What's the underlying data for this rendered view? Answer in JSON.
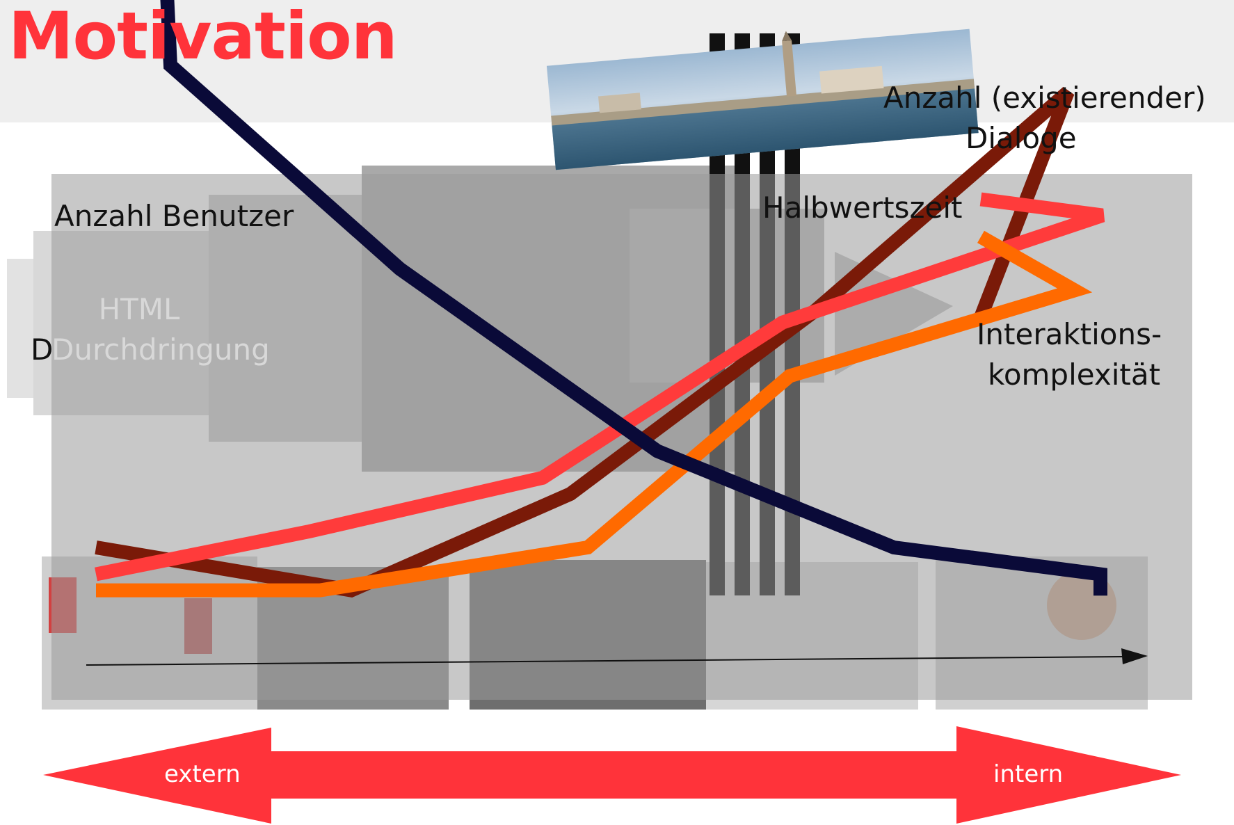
{
  "title": "Motivation",
  "labels": {
    "anzahl_benutzer": "Anzahl Benutzer",
    "dialoge_line1": "Anzahl (existierender)",
    "dialoge_line2": "Dialoge",
    "halbwertszeit": "Halbwertszeit",
    "interaktion_line1": "Interaktions-",
    "interaktion_line2": "komplexität"
  },
  "faded_labels": {
    "html_line1": "HTML",
    "html_line2": "Durchdringung",
    "d_prefix": "D"
  },
  "arrow": {
    "left_label": "extern",
    "right_label": "intern",
    "color": "#ff333a"
  },
  "colors": {
    "title": "#ff333a",
    "anzahl_benutzer": "#0a0a38",
    "anzahl_dialoge": "#7a1a08",
    "halbwertszeit": "#ff3b3b",
    "interaktionskomplexitaet": "#ff6a00"
  },
  "chart_data": {
    "type": "line",
    "x": [
      1,
      2,
      3,
      4,
      5,
      6,
      7,
      8
    ],
    "series": [
      {
        "name": "Anzahl Benutzer",
        "values": [
          null,
          100,
          62,
          28,
          10,
          5,
          1,
          null
        ]
      },
      {
        "name": "Anzahl (existierender) Dialoge",
        "values": [
          10,
          2,
          20,
          54,
          95,
          53,
          null,
          null
        ]
      },
      {
        "name": "Halbwertszeit",
        "values": [
          5,
          13,
          23,
          52,
          72,
          75,
          null,
          null
        ]
      },
      {
        "name": "Interaktions-komplexität",
        "values": [
          2,
          2,
          10,
          42,
          58,
          68,
          null,
          null
        ]
      }
    ],
    "xlabel": "",
    "ylabel": "",
    "grid": false,
    "legend": "inline labels"
  }
}
